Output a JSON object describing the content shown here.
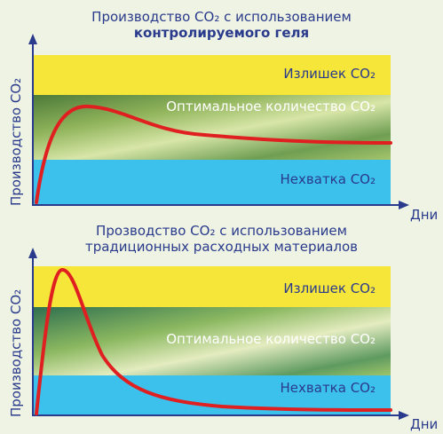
{
  "panels": [
    {
      "title_line1": "Производство CO₂ с использованием",
      "title_line2": "контролируемого геля",
      "ylabel": "Производство CO₂",
      "xlabel": "Дни",
      "zones": {
        "excess": "Излишек CO₂",
        "optimal": "Оптимальное количество CO₂",
        "deficit": "Нехватка CO₂"
      }
    },
    {
      "title_line1": "Прозводство CO₂ с использованием",
      "title_line2": "традиционных расходных материалов",
      "ylabel": "Производство CO₂",
      "xlabel": "Дни",
      "zones": {
        "excess": "Излишек CO₂",
        "optimal": "Оптимальное количество CO₂",
        "deficit": "Нехватка CO₂"
      }
    }
  ],
  "colors": {
    "excess": "#f7e63a",
    "deficit": "#3cc0ec",
    "curve": "#e02020",
    "axis": "#2a3a8c",
    "text": "#2a3a8c"
  }
}
